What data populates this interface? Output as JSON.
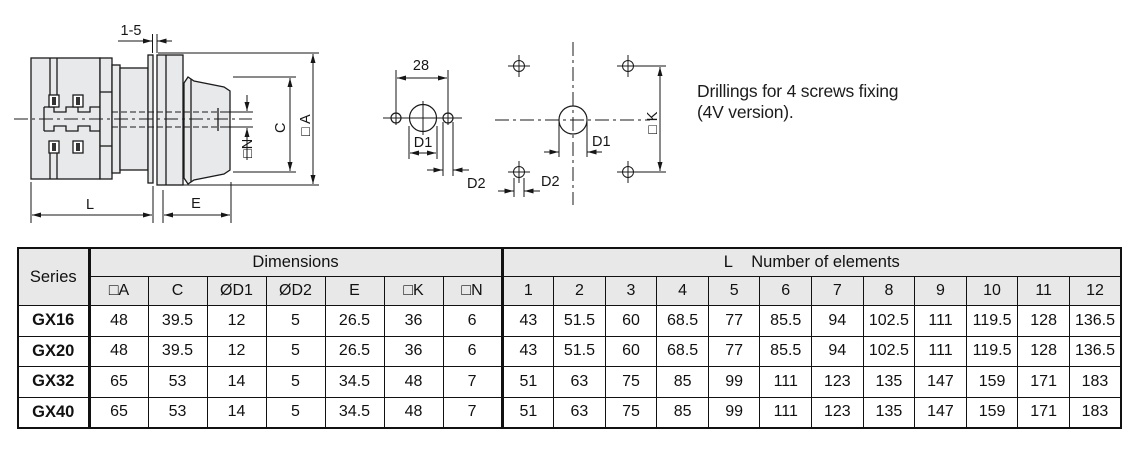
{
  "drawings": {
    "side_view": {
      "panel_thickness": "1-5",
      "dim_l": "L",
      "dim_e": "E",
      "dim_n": "□N",
      "dim_c": "C",
      "dim_a": "□ A"
    },
    "drill_2holes": {
      "spacing": "28",
      "d1": "D1",
      "d2": "D2"
    },
    "drill_4v": {
      "d1": "D1",
      "d2": "D2",
      "k": "□ K"
    },
    "note_line1": "Drillings for 4 screws fixing",
    "note_line2": "(4V version)."
  },
  "table": {
    "series_header": "Series",
    "dimensions_header": "Dimensions",
    "elements_header": "L    Number of elements",
    "dim_columns": [
      "□A",
      "C",
      "ØD1",
      "ØD2",
      "E",
      "□K",
      "□N"
    ],
    "element_columns": [
      "1",
      "2",
      "3",
      "4",
      "5",
      "6",
      "7",
      "8",
      "9",
      "10",
      "11",
      "12"
    ],
    "rows": [
      {
        "series": "GX16",
        "dims": [
          "48",
          "39.5",
          "12",
          "5",
          "26.5",
          "36",
          "6"
        ],
        "lengths": [
          "43",
          "51.5",
          "60",
          "68.5",
          "77",
          "85.5",
          "94",
          "102.5",
          "111",
          "119.5",
          "128",
          "136.5"
        ]
      },
      {
        "series": "GX20",
        "dims": [
          "48",
          "39.5",
          "12",
          "5",
          "26.5",
          "36",
          "6"
        ],
        "lengths": [
          "43",
          "51.5",
          "60",
          "68.5",
          "77",
          "85.5",
          "94",
          "102.5",
          "111",
          "119.5",
          "128",
          "136.5"
        ]
      },
      {
        "series": "GX32",
        "dims": [
          "65",
          "53",
          "14",
          "5",
          "34.5",
          "48",
          "7"
        ],
        "lengths": [
          "51",
          "63",
          "75",
          "85",
          "99",
          "111",
          "123",
          "135",
          "147",
          "159",
          "171",
          "183"
        ]
      },
      {
        "series": "GX40",
        "dims": [
          "65",
          "53",
          "14",
          "5",
          "34.5",
          "48",
          "7"
        ],
        "lengths": [
          "51",
          "63",
          "75",
          "85",
          "99",
          "111",
          "123",
          "135",
          "147",
          "159",
          "171",
          "183"
        ]
      }
    ]
  },
  "colors": {
    "line": "#1b1b1b",
    "fill_gray": "#e8e9eb",
    "header_bg": "#e8e8e8"
  }
}
